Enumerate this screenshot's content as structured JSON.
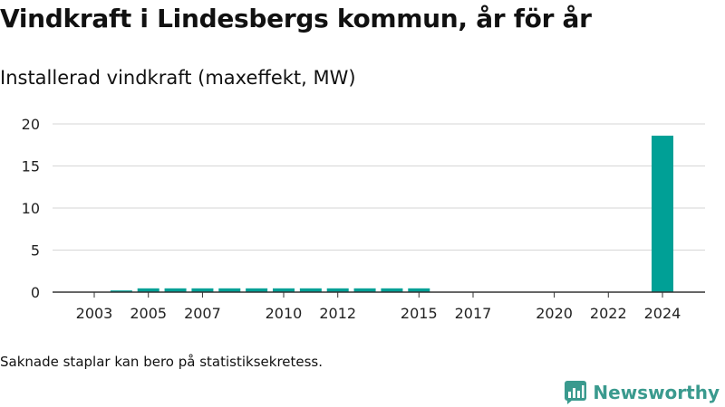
{
  "header": {
    "title": "Vindkraft i Lindesbergs kommun, år för år",
    "subtitle": "Installerad vindkraft (maxeffekt, MW)"
  },
  "footer": {
    "note": "Saknade staplar kan bero på statistiksekretess.",
    "brand": "Newsworthy",
    "logo_icon": "bar-chart-logo-icon"
  },
  "colors": {
    "bar": "#00a096",
    "grid": "#d6d6d6",
    "axis": "#333333",
    "brand": "#3a9a8e"
  },
  "chart_data": {
    "type": "bar",
    "title": "Installerad vindkraft (maxeffekt, MW)",
    "xlabel": "",
    "ylabel": "",
    "ylim": [
      0,
      20
    ],
    "yticks": [
      0,
      5,
      10,
      15,
      20
    ],
    "grid": true,
    "legend": "none",
    "categories": [
      "2003",
      "2004",
      "2005",
      "2006",
      "2007",
      "2008",
      "2009",
      "2010",
      "2011",
      "2012",
      "2013",
      "2014",
      "2015",
      "2016",
      "2017",
      "2018",
      "2019",
      "2020",
      "2021",
      "2022",
      "2023",
      "2024"
    ],
    "values": [
      null,
      0.2,
      0.45,
      0.45,
      0.45,
      0.45,
      0.45,
      0.45,
      0.45,
      0.45,
      0.45,
      0.45,
      0.45,
      null,
      null,
      null,
      null,
      null,
      null,
      null,
      null,
      18.6
    ],
    "xtick_labels": [
      "2003",
      "2005",
      "2007",
      "2010",
      "2012",
      "2015",
      "2017",
      "2020",
      "2022",
      "2024"
    ]
  }
}
